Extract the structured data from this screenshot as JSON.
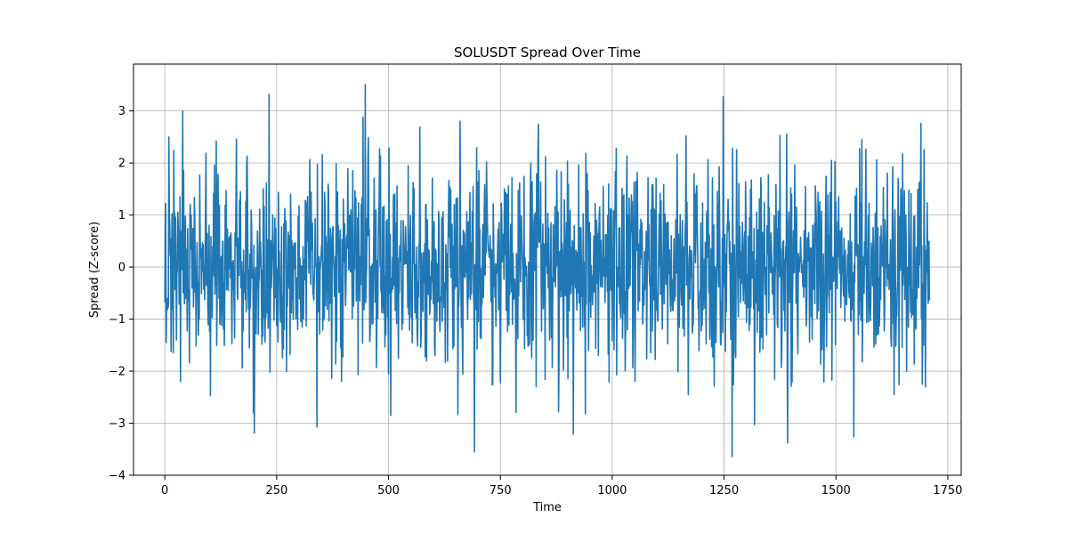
{
  "chart_data": {
    "type": "line",
    "title": "SOLUSDT Spread Over Time",
    "xlabel": "Time",
    "ylabel": "Spread (Z-score)",
    "xlim": [
      -70,
      1780
    ],
    "ylim": [
      -4,
      3.9
    ],
    "xticks": [
      0,
      250,
      500,
      750,
      1000,
      1250,
      1500,
      1750
    ],
    "yticks": [
      -4,
      -3,
      -2,
      -1,
      0,
      1,
      2,
      3
    ],
    "xtick_labels": [
      "0",
      "250",
      "500",
      "750",
      "1000",
      "1250",
      "1500",
      "1750"
    ],
    "ytick_labels": [
      "−4",
      "−3",
      "−2",
      "−1",
      "0",
      "1",
      "2",
      "3"
    ],
    "grid": true,
    "legend": "none",
    "series": [
      {
        "color": "#1f77b4",
        "n_points": 1710,
        "x_start": 0,
        "x_step": 1,
        "noise_seed": 1337,
        "noise_sd": 0.95,
        "extremes": [
          {
            "x": 2,
            "y": 1.22
          },
          {
            "x": 3,
            "y": -1.45
          },
          {
            "x": 9,
            "y": 2.5
          },
          {
            "x": 20,
            "y": 2.24
          },
          {
            "x": 35,
            "y": -2.2
          },
          {
            "x": 40,
            "y": 3.0
          },
          {
            "x": 102,
            "y": -2.47
          },
          {
            "x": 115,
            "y": 2.42
          },
          {
            "x": 160,
            "y": 2.46
          },
          {
            "x": 200,
            "y": -3.19
          },
          {
            "x": 198,
            "y": -2.8
          },
          {
            "x": 233,
            "y": 3.32
          },
          {
            "x": 235,
            "y": -2.02
          },
          {
            "x": 340,
            "y": -3.07
          },
          {
            "x": 443,
            "y": 2.88
          },
          {
            "x": 448,
            "y": 3.51
          },
          {
            "x": 455,
            "y": 2.49
          },
          {
            "x": 500,
            "y": -2.05
          },
          {
            "x": 505,
            "y": -2.85
          },
          {
            "x": 570,
            "y": 2.69
          },
          {
            "x": 655,
            "y": -2.83
          },
          {
            "x": 660,
            "y": 2.8
          },
          {
            "x": 692,
            "y": -3.55
          },
          {
            "x": 750,
            "y": -2.22
          },
          {
            "x": 785,
            "y": -2.79
          },
          {
            "x": 835,
            "y": 2.74
          },
          {
            "x": 880,
            "y": -2.78
          },
          {
            "x": 913,
            "y": -3.21
          },
          {
            "x": 940,
            "y": -2.82
          },
          {
            "x": 1165,
            "y": 2.52
          },
          {
            "x": 1170,
            "y": -2.45
          },
          {
            "x": 1248,
            "y": 3.27
          },
          {
            "x": 1268,
            "y": -3.64
          },
          {
            "x": 1318,
            "y": -3.03
          },
          {
            "x": 1392,
            "y": -3.38
          },
          {
            "x": 1390,
            "y": 2.55
          },
          {
            "x": 1375,
            "y": 2.53
          },
          {
            "x": 1540,
            "y": -3.26
          },
          {
            "x": 1558,
            "y": 2.45
          },
          {
            "x": 1630,
            "y": -2.45
          },
          {
            "x": 1690,
            "y": 2.76
          },
          {
            "x": 1700,
            "y": -2.3
          }
        ]
      }
    ]
  }
}
